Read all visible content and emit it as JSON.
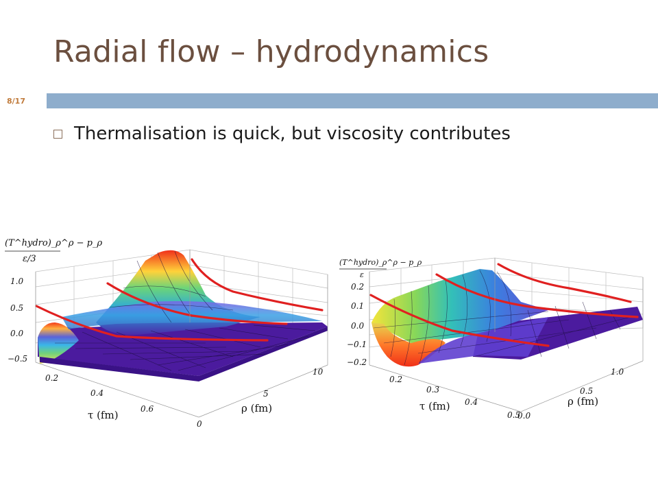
{
  "slide": {
    "title": "Radial flow – hydrodynamics",
    "number": "8/17",
    "bullet": "Thermalisation is quick, but viscosity contributes"
  },
  "colors": {
    "title": "#6b4f3f",
    "bar": "#8eadcc",
    "slide_number": "#c07a3a",
    "curve": "#e02020",
    "surface_low": "#4b1b9e"
  },
  "chart_data": [
    {
      "type": "surface3d",
      "zlabel_numerator": "(T^hydro)_ρ^ρ − p_ρ",
      "zlabel_denominator": "ε/3",
      "xlabel": "τ (fm)",
      "ylabel": "ρ (fm)",
      "x_ticks": [
        "0.2",
        "0.4",
        "0.6"
      ],
      "y_ticks": [
        "0",
        "5",
        "10"
      ],
      "z_ticks": [
        "1.0",
        "0.5",
        "0.0",
        "−0.5"
      ]
    },
    {
      "type": "surface3d",
      "zlabel_numerator": "(T^hydro)_ρ^ρ − p_ρ",
      "zlabel_denominator": "ε",
      "xlabel": "τ (fm)",
      "ylabel": "ρ (fm)",
      "x_ticks": [
        "0.2",
        "0.3",
        "0.4",
        "0.5"
      ],
      "y_ticks": [
        "0.0",
        "0.5",
        "1.0"
      ],
      "z_ticks": [
        "0.2",
        "0.1",
        "0.0",
        "−0.1",
        "−0.2"
      ]
    }
  ]
}
